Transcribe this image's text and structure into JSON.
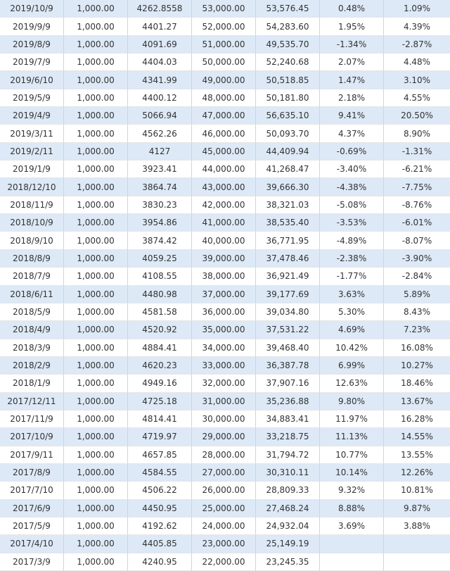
{
  "table": {
    "rows": [
      [
        "2019/10/9",
        "1,000.00",
        "4262.8558",
        "53,000.00",
        "53,576.45",
        "0.48%",
        "1.09%"
      ],
      [
        "2019/9/9",
        "1,000.00",
        "4401.27",
        "52,000.00",
        "54,283.60",
        "1.95%",
        "4.39%"
      ],
      [
        "2019/8/9",
        "1,000.00",
        "4091.69",
        "51,000.00",
        "49,535.70",
        "-1.34%",
        "-2.87%"
      ],
      [
        "2019/7/9",
        "1,000.00",
        "4404.03",
        "50,000.00",
        "52,240.68",
        "2.07%",
        "4.48%"
      ],
      [
        "2019/6/10",
        "1,000.00",
        "4341.99",
        "49,000.00",
        "50,518.85",
        "1.47%",
        "3.10%"
      ],
      [
        "2019/5/9",
        "1,000.00",
        "4400.12",
        "48,000.00",
        "50,181.80",
        "2.18%",
        "4.55%"
      ],
      [
        "2019/4/9",
        "1,000.00",
        "5066.94",
        "47,000.00",
        "56,635.10",
        "9.41%",
        "20.50%"
      ],
      [
        "2019/3/11",
        "1,000.00",
        "4562.26",
        "46,000.00",
        "50,093.70",
        "4.37%",
        "8.90%"
      ],
      [
        "2019/2/11",
        "1,000.00",
        "4127",
        "45,000.00",
        "44,409.94",
        "-0.69%",
        "-1.31%"
      ],
      [
        "2019/1/9",
        "1,000.00",
        "3923.41",
        "44,000.00",
        "41,268.47",
        "-3.40%",
        "-6.21%"
      ],
      [
        "2018/12/10",
        "1,000.00",
        "3864.74",
        "43,000.00",
        "39,666.30",
        "-4.38%",
        "-7.75%"
      ],
      [
        "2018/11/9",
        "1,000.00",
        "3830.23",
        "42,000.00",
        "38,321.03",
        "-5.08%",
        "-8.76%"
      ],
      [
        "2018/10/9",
        "1,000.00",
        "3954.86",
        "41,000.00",
        "38,535.40",
        "-3.53%",
        "-6.01%"
      ],
      [
        "2018/9/10",
        "1,000.00",
        "3874.42",
        "40,000.00",
        "36,771.95",
        "-4.89%",
        "-8.07%"
      ],
      [
        "2018/8/9",
        "1,000.00",
        "4059.25",
        "39,000.00",
        "37,478.46",
        "-2.38%",
        "-3.90%"
      ],
      [
        "2018/7/9",
        "1,000.00",
        "4108.55",
        "38,000.00",
        "36,921.49",
        "-1.77%",
        "-2.84%"
      ],
      [
        "2018/6/11",
        "1,000.00",
        "4480.98",
        "37,000.00",
        "39,177.69",
        "3.63%",
        "5.89%"
      ],
      [
        "2018/5/9",
        "1,000.00",
        "4581.58",
        "36,000.00",
        "39,034.80",
        "5.30%",
        "8.43%"
      ],
      [
        "2018/4/9",
        "1,000.00",
        "4520.92",
        "35,000.00",
        "37,531.22",
        "4.69%",
        "7.23%"
      ],
      [
        "2018/3/9",
        "1,000.00",
        "4884.41",
        "34,000.00",
        "39,468.40",
        "10.42%",
        "16.08%"
      ],
      [
        "2018/2/9",
        "1,000.00",
        "4620.23",
        "33,000.00",
        "36,387.78",
        "6.99%",
        "10.27%"
      ],
      [
        "2018/1/9",
        "1,000.00",
        "4949.16",
        "32,000.00",
        "37,907.16",
        "12.63%",
        "18.46%"
      ],
      [
        "2017/12/11",
        "1,000.00",
        "4725.18",
        "31,000.00",
        "35,236.88",
        "9.80%",
        "13.67%"
      ],
      [
        "2017/11/9",
        "1,000.00",
        "4814.41",
        "30,000.00",
        "34,883.41",
        "11.97%",
        "16.28%"
      ],
      [
        "2017/10/9",
        "1,000.00",
        "4719.97",
        "29,000.00",
        "33,218.75",
        "11.13%",
        "14.55%"
      ],
      [
        "2017/9/11",
        "1,000.00",
        "4657.85",
        "28,000.00",
        "31,794.72",
        "10.77%",
        "13.55%"
      ],
      [
        "2017/8/9",
        "1,000.00",
        "4584.55",
        "27,000.00",
        "30,310.11",
        "10.14%",
        "12.26%"
      ],
      [
        "2017/7/10",
        "1,000.00",
        "4506.22",
        "26,000.00",
        "28,809.33",
        "9.32%",
        "10.81%"
      ],
      [
        "2017/6/9",
        "1,000.00",
        "4450.95",
        "25,000.00",
        "27,468.24",
        "8.88%",
        "9.87%"
      ],
      [
        "2017/5/9",
        "1,000.00",
        "4192.62",
        "24,000.00",
        "24,932.04",
        "3.69%",
        "3.88%"
      ],
      [
        "2017/4/10",
        "1,000.00",
        "4405.85",
        "23,000.00",
        "25,149.19"
      ],
      [
        "2017/3/9",
        "1,000.00",
        "4240.95",
        "22,000.00",
        "23,245.35"
      ]
    ]
  }
}
